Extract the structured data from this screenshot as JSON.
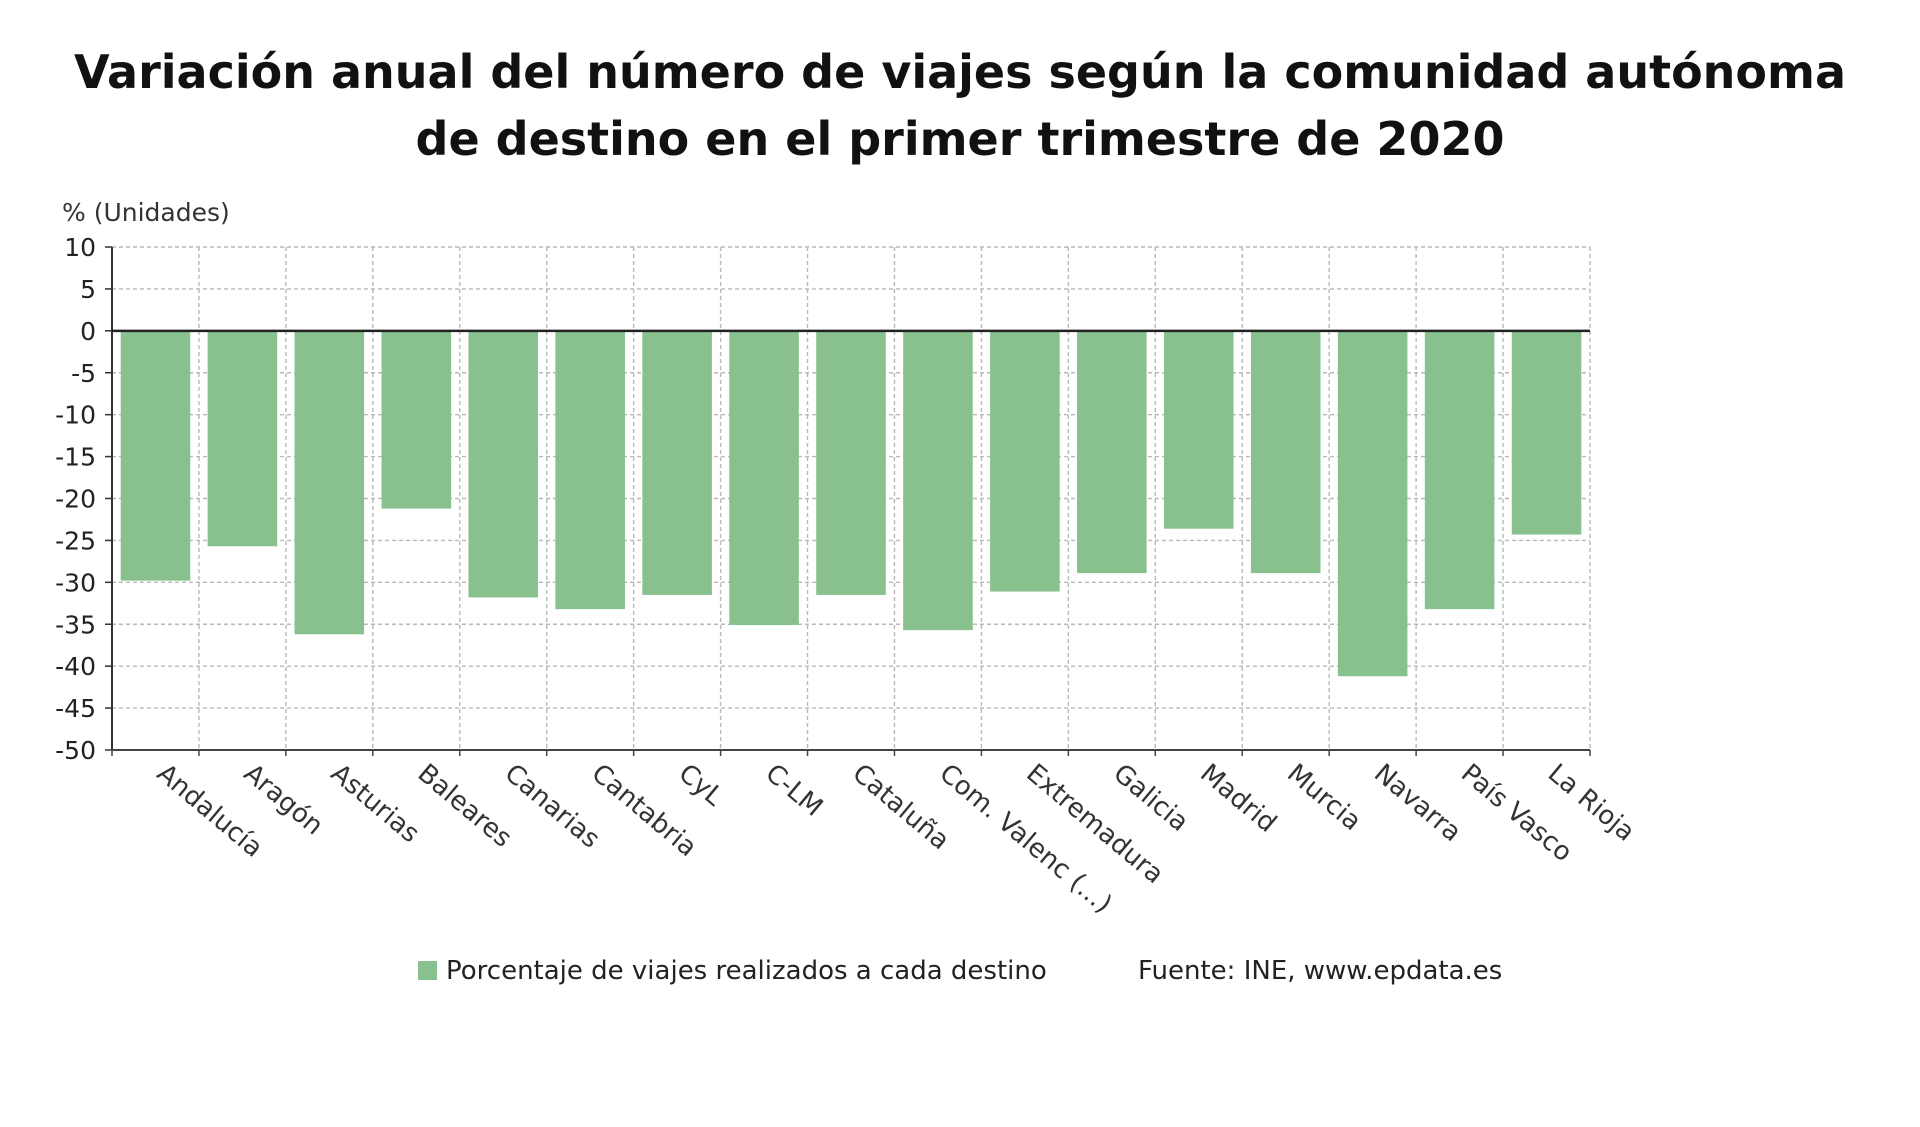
{
  "chart_data": {
    "type": "bar",
    "title": [
      "Variación anual del número de viajes según la comunidad autónoma",
      "de destino en el primer trimestre de 2020"
    ],
    "ylabel": "% (Unidades)",
    "xlabel": "",
    "ylim": [
      -50,
      10
    ],
    "yticks": [
      10,
      5,
      0,
      -5,
      -10,
      -15,
      -20,
      -25,
      -30,
      -35,
      -40,
      -45,
      -50
    ],
    "grid": true,
    "categories": [
      "Andalucía",
      "Aragón",
      "Asturias",
      "Baleares",
      "Canarias",
      "Cantabria",
      "CyL",
      "C-LM",
      "Cataluña",
      "Com. Valenc (...)",
      "Extremadura",
      "Galicia",
      "Madrid",
      "Murcia",
      "Navarra",
      "País Vasco",
      "La Rioja"
    ],
    "series": [
      {
        "name": "Porcentaje de viajes realizados a cada destino",
        "color": "#88c08e",
        "values": [
          -29.8,
          -25.7,
          -36.2,
          -21.2,
          -31.8,
          -33.2,
          -31.5,
          -35.1,
          -31.5,
          -35.7,
          -31.1,
          -28.9,
          -23.6,
          -28.9,
          -41.2,
          -33.2,
          -24.3
        ]
      }
    ],
    "legend_position": "bottom",
    "source": "Fuente: INE, www.epdata.es"
  }
}
